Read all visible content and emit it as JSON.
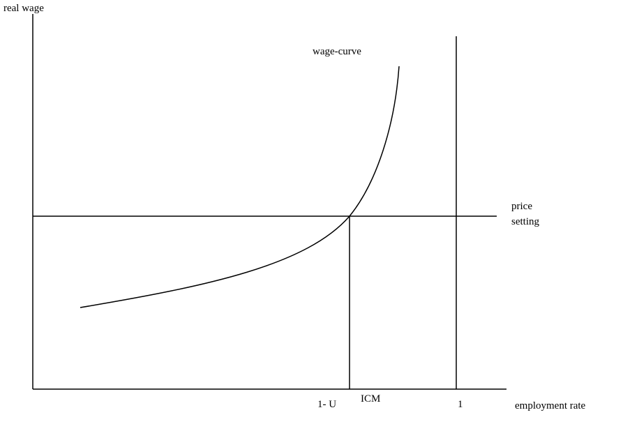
{
  "axes": {
    "y_label": "real wage",
    "x_label": "employment rate"
  },
  "curves": {
    "wage_curve": "wage-curve",
    "price_setting": [
      "price",
      "setting"
    ]
  },
  "x_marks": {
    "equilibrium": "1- U",
    "equilibrium_superscript": "ICM",
    "full_employment": "1"
  }
}
